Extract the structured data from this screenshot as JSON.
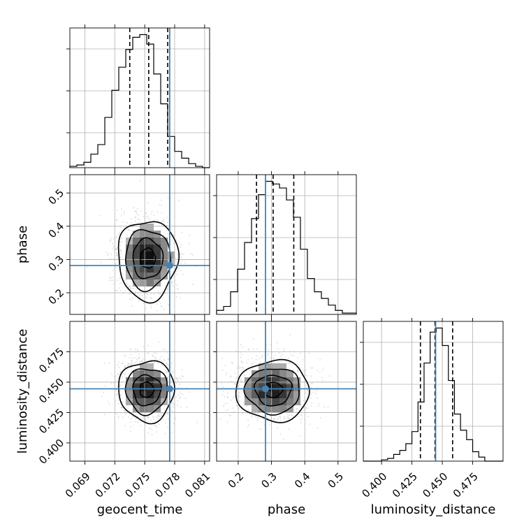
{
  "chart_data": {
    "type": "corner",
    "parameters": [
      {
        "name": "geocent_time",
        "range": [
          0.0675,
          0.0815
        ],
        "ticks": [
          "0.069",
          "0.072",
          "0.075",
          "0.078",
          "0.081"
        ],
        "tick_values": [
          0.069,
          0.072,
          0.075,
          0.078,
          0.081
        ],
        "truth": 0.0775,
        "quantiles": [
          0.0735,
          0.0754,
          0.0773
        ]
      },
      {
        "name": "phase",
        "range": [
          0.135,
          0.555
        ],
        "ticks": [
          "0.2",
          "0.3",
          "0.4",
          "0.5"
        ],
        "tick_values": [
          0.2,
          0.3,
          0.4,
          0.5
        ],
        "truth": 0.282,
        "quantiles": [
          0.255,
          0.305,
          0.367
        ]
      },
      {
        "name": "luminosity_distance",
        "range": [
          0.385,
          0.5
        ],
        "ticks": [
          "0.400",
          "0.425",
          "0.450",
          "0.475"
        ],
        "tick_values": [
          0.4,
          0.425,
          0.45,
          0.475
        ],
        "truth": 0.4445,
        "quantiles": [
          0.432,
          0.444,
          0.4585
        ]
      }
    ],
    "histograms": [
      {
        "param": "geocent_time",
        "bin_edges": [
          0.0675,
          0.0682,
          0.0689,
          0.0696,
          0.0703,
          0.071,
          0.0717,
          0.0724,
          0.0731,
          0.0738,
          0.0745,
          0.0752,
          0.0759,
          0.0766,
          0.0773,
          0.078,
          0.0787,
          0.0794,
          0.0801,
          0.0808,
          0.0815
        ],
        "counts": [
          1,
          2,
          4,
          10,
          17,
          37,
          57,
          74,
          87,
          96,
          98,
          91,
          69,
          47,
          23,
          12,
          7,
          3,
          1,
          0
        ]
      },
      {
        "param": "phase",
        "bin_edges": [
          0.135,
          0.156,
          0.177,
          0.198,
          0.219,
          0.24,
          0.261,
          0.282,
          0.303,
          0.324,
          0.345,
          0.366,
          0.387,
          0.408,
          0.429,
          0.45,
          0.471,
          0.492,
          0.513,
          0.534,
          0.555
        ],
        "counts": [
          3,
          6,
          17,
          34,
          54,
          72,
          90,
          100,
          98,
          95,
          86,
          73,
          49,
          27,
          17,
          12,
          7,
          3,
          1,
          1
        ]
      },
      {
        "param": "luminosity_distance",
        "bin_edges": [
          0.385,
          0.39,
          0.395,
          0.4,
          0.405,
          0.41,
          0.415,
          0.42,
          0.425,
          0.43,
          0.435,
          0.44,
          0.445,
          0.45,
          0.455,
          0.46,
          0.465,
          0.47,
          0.475,
          0.48,
          0.485,
          0.49,
          0.495,
          0.5
        ],
        "counts": [
          0,
          0,
          0,
          1,
          2,
          5,
          8,
          13,
          22,
          44,
          73,
          96,
          99,
          86,
          60,
          35,
          23,
          16,
          7,
          3,
          0,
          0,
          0
        ]
      }
    ],
    "pairs": [
      {
        "x": "geocent_time",
        "y": "phase",
        "center": [
          0.0753,
          0.305
        ],
        "sigma": [
          0.0015,
          0.06
        ]
      },
      {
        "x": "geocent_time",
        "y": "luminosity_distance",
        "center": [
          0.0752,
          0.444
        ],
        "sigma": [
          0.0014,
          0.0125
        ]
      },
      {
        "x": "phase",
        "y": "luminosity_distance",
        "center": [
          0.305,
          0.444
        ],
        "sigma": [
          0.055,
          0.0125
        ]
      }
    ],
    "truth_color": "#4682b4",
    "grid": true
  }
}
